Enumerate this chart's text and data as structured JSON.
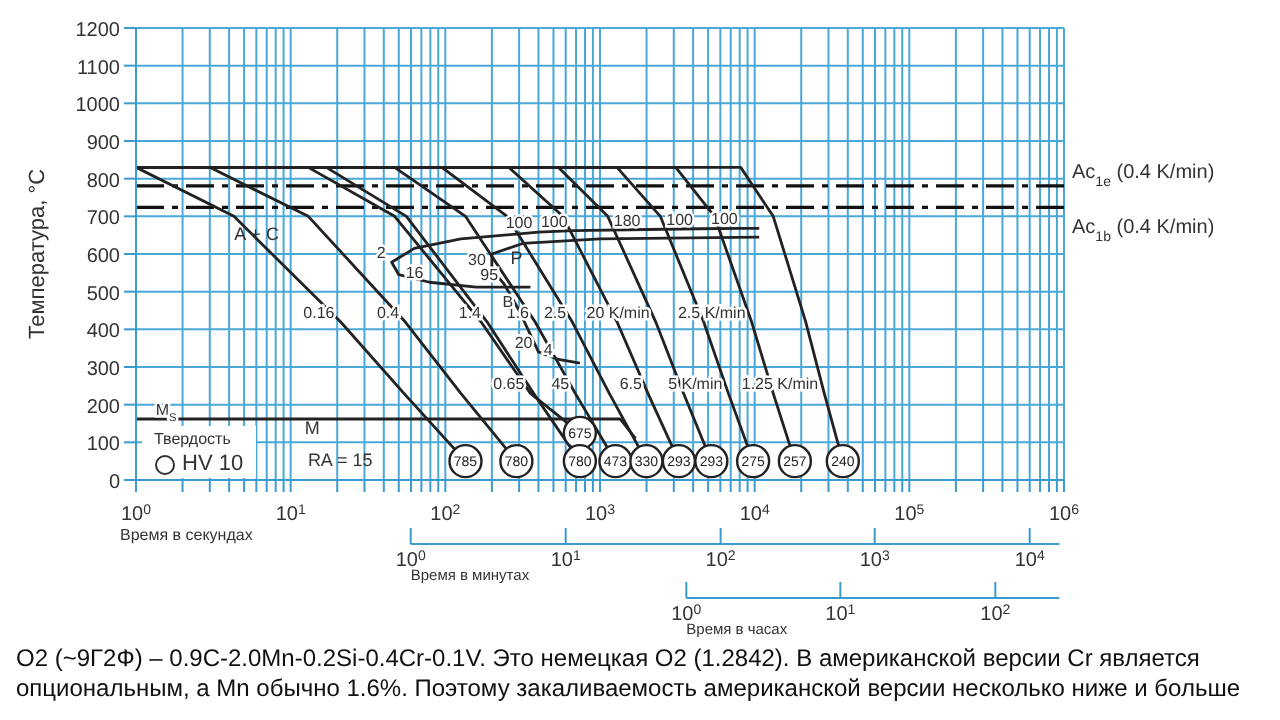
{
  "chart_data": {
    "type": "line",
    "ylabel": "Температура, °C",
    "xlabel": "Время в секундах",
    "log": "x",
    "grid": true,
    "marker": "none",
    "xlim": [
      1,
      1000000
    ],
    "xticks": [
      {
        "value": 1,
        "label": "10$^{0}$"
      },
      {
        "value": 2,
        "label": null
      },
      {
        "value": 3,
        "label": null
      },
      {
        "value": 4,
        "label": null
      },
      {
        "value": 5,
        "label": null
      },
      {
        "value": 6,
        "label": null
      },
      {
        "value": 7,
        "label": null
      },
      {
        "value": 8,
        "label": null
      },
      {
        "value": 9,
        "label": null
      },
      {
        "value": 10,
        "label": "10$^{1}$"
      },
      {
        "value": 20,
        "label": null
      },
      {
        "value": 30,
        "label": null
      },
      {
        "value": 40,
        "label": null
      },
      {
        "value": 50,
        "label": null
      },
      {
        "value": 60,
        "label": null
      },
      {
        "value": 70,
        "label": null
      },
      {
        "value": 80,
        "label": null
      },
      {
        "value": 90,
        "label": null
      },
      {
        "value": 100,
        "label": "10$^{2}$"
      },
      {
        "value": 200,
        "label": null
      },
      {
        "value": 300,
        "label": null
      },
      {
        "value": 400,
        "label": null
      },
      {
        "value": 500,
        "label": null
      },
      {
        "value": 600,
        "label": null
      },
      {
        "value": 700,
        "label": null
      },
      {
        "value": 800,
        "label": null
      },
      {
        "value": 900,
        "label": null
      },
      {
        "value": 1000,
        "label": "10$^{3}$"
      },
      {
        "value": 2000,
        "label": null
      },
      {
        "value": 3000,
        "label": null
      },
      {
        "value": 4000,
        "label": null
      },
      {
        "value": 5000,
        "label": null
      },
      {
        "value": 6000,
        "label": null
      },
      {
        "value": 7000,
        "label": null
      },
      {
        "value": 8000,
        "label": null
      },
      {
        "value": 9000,
        "label": null
      },
      {
        "value": 10000,
        "label": "10$^{4}$"
      },
      {
        "value": 20000,
        "label": null
      },
      {
        "value": 30000,
        "label": null
      },
      {
        "value": 40000,
        "label": null
      },
      {
        "value": 50000,
        "label": null
      },
      {
        "value": 60000,
        "label": null
      },
      {
        "value": 70000,
        "label": null
      },
      {
        "value": 80000,
        "label": null
      },
      {
        "value": 90000,
        "label": null
      },
      {
        "value": 100000,
        "label": "10$^{5}$"
      },
      {
        "value": 200000,
        "label": null
      },
      {
        "value": 300000,
        "label": null
      },
      {
        "value": 400000,
        "label": null
      },
      {
        "value": 500000,
        "label": null
      },
      {
        "value": 600000,
        "label": null
      },
      {
        "value": 700000,
        "label": null
      },
      {
        "value": 800000,
        "label": null
      },
      {
        "value": 900000,
        "label": null
      },
      {
        "value": 1000000,
        "label": "10$^{6}$"
      }
    ],
    "ylim": [
      0,
      1200
    ],
    "yticks": [
      0,
      100,
      200,
      300,
      400,
      500,
      600,
      700,
      800,
      900,
      1000,
      1100,
      1200
    ],
    "series": [
      {
        "color": "#222222",
        "x": [
          1,
          4.3,
          21,
          54,
          135
        ],
        "values": [
          830,
          700,
          420,
          230,
          50
        ]
      },
      {
        "color": "#222222",
        "x": [
          1,
          3,
          13,
          55,
          126,
          288
        ],
        "values": [
          830,
          830,
          700,
          420,
          230,
          50
        ]
      },
      {
        "color": "#222222",
        "x": [
          1,
          13,
          47,
          170,
          355,
          741
        ],
        "values": [
          830,
          830,
          700,
          420,
          230,
          125
        ]
      },
      {
        "color": "#222222",
        "x": [
          1,
          17,
          56,
          186,
          372,
          741
        ],
        "values": [
          830,
          830,
          700,
          420,
          230,
          50
        ]
      },
      {
        "color": "#222222",
        "x": [
          1,
          47,
          135,
          380,
          692,
          1259
        ],
        "values": [
          830,
          830,
          700,
          420,
          230,
          50
        ]
      },
      {
        "color": "#222222",
        "x": [
          1,
          95,
          251,
          661,
          1148,
          1995
        ],
        "values": [
          830,
          830,
          700,
          420,
          230,
          50
        ]
      },
      {
        "color": "#222222",
        "x": [
          1,
          257,
          575,
          1288,
          2042,
          3236
        ],
        "values": [
          830,
          830,
          700,
          420,
          230,
          50
        ]
      },
      {
        "color": "#222222",
        "x": [
          1,
          537,
          1122,
          2291,
          3467,
          5248
        ],
        "values": [
          830,
          830,
          700,
          420,
          230,
          50
        ]
      },
      {
        "color": "#222222",
        "x": [
          1,
          1288,
          2455,
          4677,
          6761,
          9772
        ],
        "values": [
          830,
          830,
          700,
          420,
          230,
          50
        ]
      },
      {
        "color": "#222222",
        "x": [
          1,
          3090,
          5495,
          9550,
          13183,
          18197
        ],
        "values": [
          830,
          830,
          700,
          420,
          230,
          50
        ]
      },
      {
        "color": "#222222",
        "x": [
          1,
          8128,
          13183,
          21380,
          28184,
          37154
        ],
        "values": [
          830,
          830,
          700,
          420,
          230,
          50
        ]
      },
      {
        "color": "#222222",
        "x": [
          10700,
          8500,
          4365,
          2000,
          676,
          400,
          126,
          63,
          45,
          50,
          79,
          158,
          355
        ],
        "values": [
          668,
          668,
          667,
          665,
          662,
          658,
          640,
          615,
          578,
          545,
          525,
          512,
          512
        ]
      },
      {
        "color": "#222222",
        "x": [
          10700,
          1000,
          316,
          200,
          200,
          240,
          300,
          400,
          540,
          741
        ],
        "values": [
          645,
          640,
          628,
          600,
          560,
          520,
          450,
          340,
          320,
          310
        ]
      },
      {
        "color": "#222222",
        "x": [
          1,
          2,
          1349,
          1700
        ],
        "values": [
          162,
          162,
          162,
          110
        ]
      }
    ],
    "ref_lines": [
      {
        "axis": "y",
        "value": 781,
        "label": "Ac$_{1e}$ (0.4 K/min)",
        "line_style": "dashed",
        "color": "#111111"
      },
      {
        "axis": "y",
        "value": 724,
        "label": "Ac$_{1b}$ (0.4 K/min)",
        "line_style": "dashed",
        "color": "#111111"
      }
    ],
    "annotations": [
      {
        "text": "0.16",
        "x": 21,
        "y": 420
      },
      {
        "text": "0.4",
        "x": 55,
        "y": 420
      },
      {
        "text": "0.65",
        "x": 355,
        "y": 230
      },
      {
        "text": "1.4",
        "x": 186,
        "y": 420
      },
      {
        "text": "1.6",
        "x": 380,
        "y": 420
      },
      {
        "text": "2.5",
        "x": 661,
        "y": 420
      },
      {
        "text": "6.5",
        "x": 2042,
        "y": 230
      },
      {
        "text": "20 K/min",
        "x": 2291,
        "y": 420
      },
      {
        "text": "5 K/min",
        "x": 6761,
        "y": 230
      },
      {
        "text": "2.5 K/min",
        "x": 9550,
        "y": 420
      },
      {
        "text": "1.25 K/min",
        "x": 28184,
        "y": 230
      },
      {
        "text": "2",
        "x": 45,
        "y": 578
      },
      {
        "text": "16",
        "x": 79,
        "y": 525
      },
      {
        "text": "30",
        "x": 200,
        "y": 560
      },
      {
        "text": "95",
        "x": 240,
        "y": 520
      },
      {
        "text": "100",
        "x": 400,
        "y": 658
      },
      {
        "text": "100",
        "x": 676,
        "y": 662
      },
      {
        "text": "180",
        "x": 2000,
        "y": 665
      },
      {
        "text": "100",
        "x": 4365,
        "y": 667
      },
      {
        "text": "100",
        "x": 8500,
        "y": 668
      },
      {
        "text": "B",
        "x": 300,
        "y": 450
      },
      {
        "text": "20",
        "x": 400,
        "y": 340
      },
      {
        "text": "4",
        "x": 540,
        "y": 320
      },
      {
        "text": "45",
        "x": 692,
        "y": 230
      },
      {
        "text": "M$_{S}$",
        "x": 2,
        "y": 162
      },
      {
        "text": "785",
        "x": 135,
        "y": 50
      },
      {
        "text": "780",
        "x": 288,
        "y": 50
      },
      {
        "text": "675",
        "x": 741,
        "y": 125
      },
      {
        "text": "780",
        "x": 741,
        "y": 50
      },
      {
        "text": "473",
        "x": 1259,
        "y": 50
      },
      {
        "text": "330",
        "x": 1995,
        "y": 50
      },
      {
        "text": "293",
        "x": 3236,
        "y": 50
      },
      {
        "text": "293",
        "x": 5248,
        "y": 50
      },
      {
        "text": "275",
        "x": 9772,
        "y": 50
      },
      {
        "text": "257",
        "x": 18197,
        "y": 50
      },
      {
        "text": "240",
        "x": 37154,
        "y": 50
      },
      "P",
      "A + C",
      "M",
      "RA = 15",
      "Твердость",
      "HV 10",
      "10$^{0}$",
      "10$^{1}$",
      "10$^{2}$",
      "10$^{3}$",
      "10$^{4}$",
      "Время в минутах",
      "10$^{0}$",
      "10$^{1}$",
      "10$^{2}$",
      "Время в часах",
      "O2 (~9Г2Ф) – 0.9C-2.0Mn-0.2Si-0.4Cr-0.1V. Это немецкая O2 (1.2842). В американской версии Cr является опциональным, а Mn обычно 1.6%. Поэтому закаливаемость американской версии несколько ниже и больше"
    ]
  }
}
